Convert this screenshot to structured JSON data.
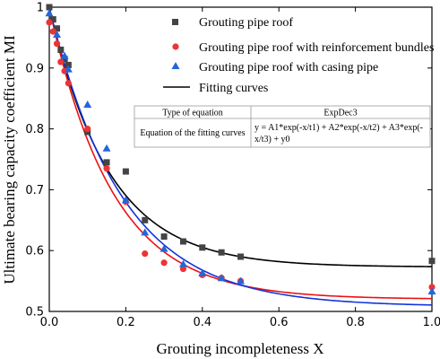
{
  "chart_data": {
    "type": "scatter",
    "xlabel": "Grouting incompleteness X",
    "ylabel": "Ultimate bearing capacity coefficient MI",
    "xlim": [
      0.0,
      1.0
    ],
    "ylim": [
      0.5,
      1.0
    ],
    "x_ticks": [
      "0.0",
      "0.2",
      "0.4",
      "0.6",
      "0.8",
      "1.0"
    ],
    "y_ticks": [
      "0.5",
      "0.6",
      "0.7",
      "0.8",
      "0.9",
      "1"
    ],
    "legend_position": "top-right",
    "series": [
      {
        "name": "Grouting pipe roof",
        "marker": "square",
        "color": "#444444",
        "points": [
          [
            0.0,
            1.0
          ],
          [
            0.01,
            0.98
          ],
          [
            0.02,
            0.965
          ],
          [
            0.03,
            0.93
          ],
          [
            0.04,
            0.915
          ],
          [
            0.05,
            0.905
          ],
          [
            0.1,
            0.795
          ],
          [
            0.15,
            0.745
          ],
          [
            0.2,
            0.73
          ],
          [
            0.25,
            0.65
          ],
          [
            0.3,
            0.623
          ],
          [
            0.35,
            0.615
          ],
          [
            0.4,
            0.605
          ],
          [
            0.45,
            0.597
          ],
          [
            0.5,
            0.59
          ],
          [
            1.0,
            0.583
          ]
        ]
      },
      {
        "name": "Grouting pipe roof with reinforcement bundles",
        "marker": "circle",
        "color": "#ee3333",
        "points": [
          [
            0.0,
            0.975
          ],
          [
            0.01,
            0.96
          ],
          [
            0.02,
            0.94
          ],
          [
            0.03,
            0.91
          ],
          [
            0.04,
            0.895
          ],
          [
            0.05,
            0.875
          ],
          [
            0.1,
            0.8
          ],
          [
            0.15,
            0.735
          ],
          [
            0.2,
            0.68
          ],
          [
            0.25,
            0.595
          ],
          [
            0.3,
            0.58
          ],
          [
            0.35,
            0.57
          ],
          [
            0.4,
            0.56
          ],
          [
            0.45,
            0.555
          ],
          [
            0.5,
            0.55
          ],
          [
            1.0,
            0.54
          ]
        ]
      },
      {
        "name": "Grouting pipe roof with casing pipe",
        "marker": "triangle",
        "color": "#2266dd",
        "points": [
          [
            0.0,
            0.99
          ],
          [
            0.02,
            0.955
          ],
          [
            0.04,
            0.92
          ],
          [
            0.05,
            0.898
          ],
          [
            0.1,
            0.84
          ],
          [
            0.15,
            0.768
          ],
          [
            0.2,
            0.683
          ],
          [
            0.25,
            0.63
          ],
          [
            0.3,
            0.603
          ],
          [
            0.35,
            0.578
          ],
          [
            0.4,
            0.563
          ],
          [
            0.45,
            0.555
          ],
          [
            0.5,
            0.55
          ],
          [
            1.0,
            0.533
          ]
        ]
      }
    ],
    "fitting_curves": {
      "name": "Fitting curves",
      "curves": [
        {
          "color": "#000000",
          "y0": 0.573,
          "A": 0.427,
          "t": 0.155
        },
        {
          "color": "#ee1111",
          "y0": 0.52,
          "A": 0.48,
          "t": 0.165
        },
        {
          "color": "#1133dd",
          "y0": 0.508,
          "A": 0.492,
          "t": 0.19
        }
      ]
    },
    "table": {
      "rows": [
        [
          "Type of equation",
          "ExpDec3"
        ],
        [
          "Equation of the fitting curves",
          "y = A1*exp(-x/t1) + A2*exp(-x/t2) + A3*exp(-",
          "x/t3) + y0"
        ]
      ]
    }
  }
}
